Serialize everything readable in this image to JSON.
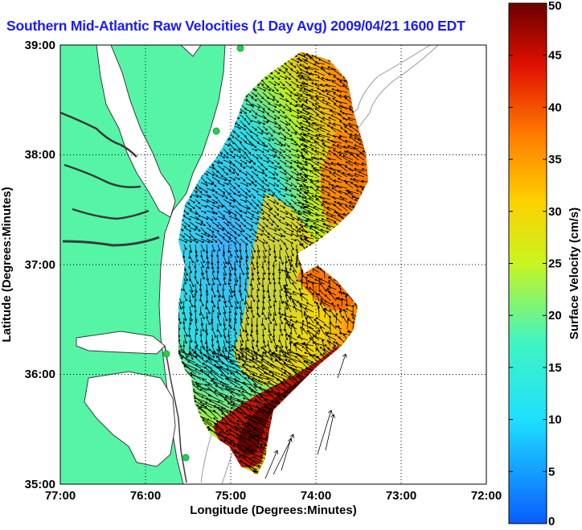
{
  "title": "Southern Mid-Atlantic Raw Velocities (1 Day Avg) 2009/04/21 1600 EDT",
  "map": {
    "xlabel": "Longitude (Degrees:Minutes)",
    "ylabel": "Latitude (Degrees:Minutes)",
    "x_ticks": [
      "77:00",
      "76:00",
      "75:00",
      "74:00",
      "73:00",
      "72:00"
    ],
    "y_ticks": [
      "39:00",
      "38:00",
      "37:00",
      "36:00",
      "35:00"
    ],
    "lon_range": [
      -77,
      -72
    ],
    "lat_range": [
      35,
      39
    ],
    "colors": {
      "land": "#55f5a5",
      "water": "#ffffff",
      "coastline": "#3a3a3a",
      "isobath": "#999999",
      "stations": "#2ecc40",
      "vectors": "#000000"
    }
  },
  "colorbar": {
    "label": "Surface Velocity (cm/s)",
    "ticks": [
      "50",
      "45",
      "40",
      "35",
      "30",
      "25",
      "20",
      "15",
      "10",
      "5",
      "0"
    ],
    "range": [
      0,
      50
    ],
    "colormap": "jet"
  }
}
